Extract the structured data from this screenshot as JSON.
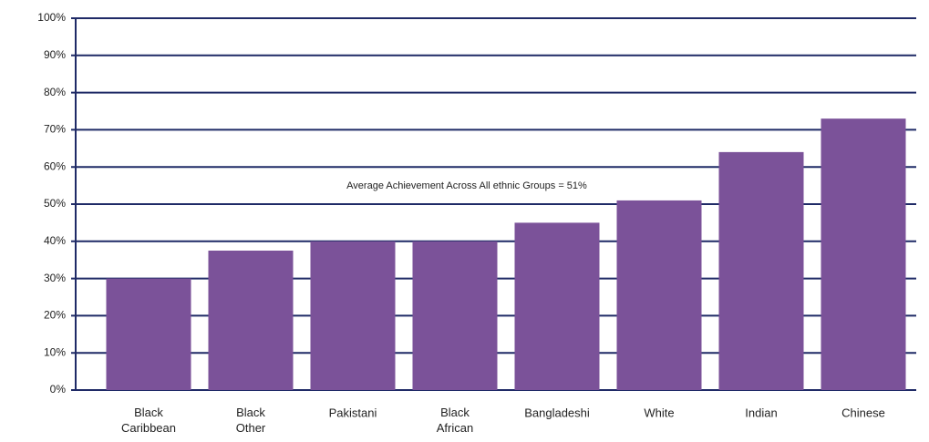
{
  "chart_data": {
    "type": "bar",
    "annotation": "Average Achievement Across All ethnic Groups = 51%",
    "categories": [
      "Black Caribbean",
      "Black Other",
      "Pakistani",
      "Black African",
      "Bangladeshi",
      "White",
      "Indian",
      "Chinese"
    ],
    "values": [
      30,
      37.5,
      40,
      40,
      45,
      51,
      64,
      73
    ],
    "color": "#7b5299",
    "ylim": [
      0,
      100
    ],
    "yticks": [
      {
        "value": 0,
        "label": "0%"
      },
      {
        "value": 10,
        "label": "10%"
      },
      {
        "value": 20,
        "label": "20%"
      },
      {
        "value": 30,
        "label": "30%"
      },
      {
        "value": 40,
        "label": "40%"
      },
      {
        "value": 50,
        "label": "50%"
      },
      {
        "value": 60,
        "label": "60%"
      },
      {
        "value": 70,
        "label": "70%"
      },
      {
        "value": 80,
        "label": "80%"
      },
      {
        "value": 90,
        "label": "90%"
      },
      {
        "value": 100,
        "label": "100%"
      }
    ],
    "grid": true
  }
}
